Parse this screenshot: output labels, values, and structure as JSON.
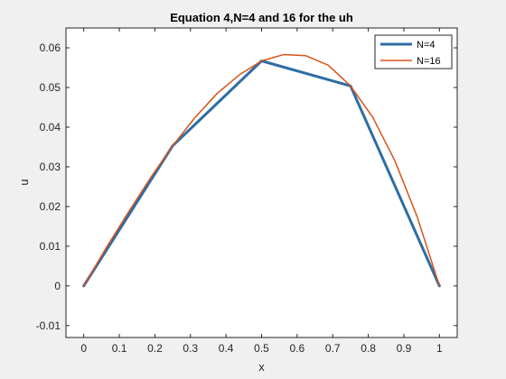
{
  "chart_data": {
    "type": "line",
    "title": "Equation 4,N=4 and 16 for the uh",
    "xlabel": "x",
    "ylabel": "u",
    "xlim": [
      -0.05,
      1.05
    ],
    "ylim": [
      -0.013,
      0.065
    ],
    "xticks": [
      0,
      0.1,
      0.2,
      0.3,
      0.4,
      0.5,
      0.6,
      0.7,
      0.8,
      0.9,
      1
    ],
    "xtick_labels": [
      "0",
      "0.1",
      "0.2",
      "0.3",
      "0.4",
      "0.5",
      "0.6",
      "0.7",
      "0.8",
      "0.9",
      "1"
    ],
    "yticks": [
      -0.01,
      0,
      0.01,
      0.02,
      0.03,
      0.04,
      0.05,
      0.06
    ],
    "ytick_labels": [
      "-0.01",
      "0",
      "0.01",
      "0.02",
      "0.03",
      "0.04",
      "0.05",
      "0.06"
    ],
    "grid": false,
    "legend_position": "top-right",
    "series": [
      {
        "name": "N=4",
        "color": "#2e6da4",
        "x": [
          0,
          0.25,
          0.5,
          0.75,
          1
        ],
        "y": [
          0,
          0.0353,
          0.0567,
          0.0504,
          0
        ]
      },
      {
        "name": "N=16",
        "color": "#d95319",
        "x": [
          0,
          0.0625,
          0.125,
          0.1875,
          0.25,
          0.3125,
          0.375,
          0.4375,
          0.5,
          0.5625,
          0.625,
          0.6875,
          0.75,
          0.8125,
          0.875,
          0.9375,
          1
        ],
        "y": [
          0,
          0.0095,
          0.0185,
          0.0272,
          0.0353,
          0.0424,
          0.0485,
          0.0532,
          0.0567,
          0.0583,
          0.058,
          0.0556,
          0.0504,
          0.0425,
          0.0315,
          0.0174,
          0
        ]
      }
    ]
  }
}
